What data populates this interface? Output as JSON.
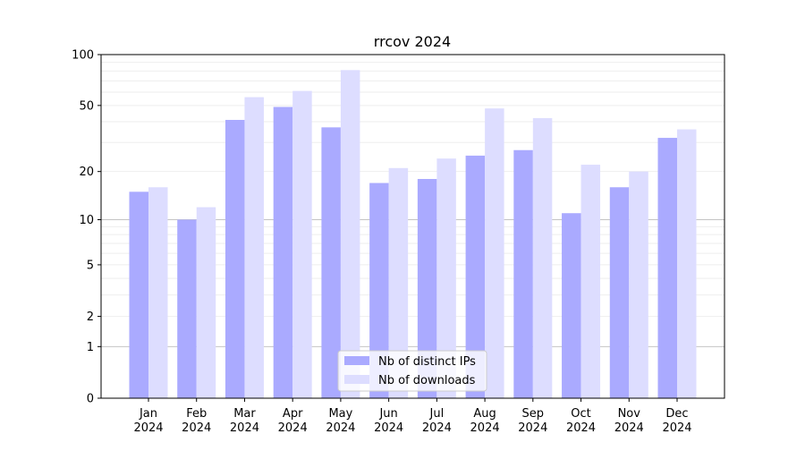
{
  "chart_data": {
    "type": "bar",
    "title": "rrcov 2024",
    "xlabel": "",
    "ylabel": "",
    "yscale": "log(1+y)",
    "ylim": [
      0,
      100
    ],
    "yticks": [
      0,
      1,
      2,
      5,
      10,
      20,
      50,
      100
    ],
    "ytick_labels": [
      "0",
      "1",
      "2",
      "5",
      "10",
      "20",
      "50",
      "100"
    ],
    "grid": true,
    "legend_position": "bottom-center",
    "categories": [
      [
        "Jan",
        "2024"
      ],
      [
        "Feb",
        "2024"
      ],
      [
        "Mar",
        "2024"
      ],
      [
        "Apr",
        "2024"
      ],
      [
        "May",
        "2024"
      ],
      [
        "Jun",
        "2024"
      ],
      [
        "Jul",
        "2024"
      ],
      [
        "Aug",
        "2024"
      ],
      [
        "Sep",
        "2024"
      ],
      [
        "Oct",
        "2024"
      ],
      [
        "Nov",
        "2024"
      ],
      [
        "Dec",
        "2024"
      ]
    ],
    "series": [
      {
        "name": "Nb of distinct IPs",
        "color": "#aaaaff",
        "values": [
          15,
          10,
          41,
          49,
          37,
          17,
          18,
          25,
          27,
          11,
          16,
          32
        ]
      },
      {
        "name": "Nb of downloads",
        "color": "#ddddff",
        "values": [
          16,
          12,
          56,
          61,
          81,
          21,
          24,
          48,
          42,
          22,
          20,
          36
        ]
      }
    ]
  }
}
